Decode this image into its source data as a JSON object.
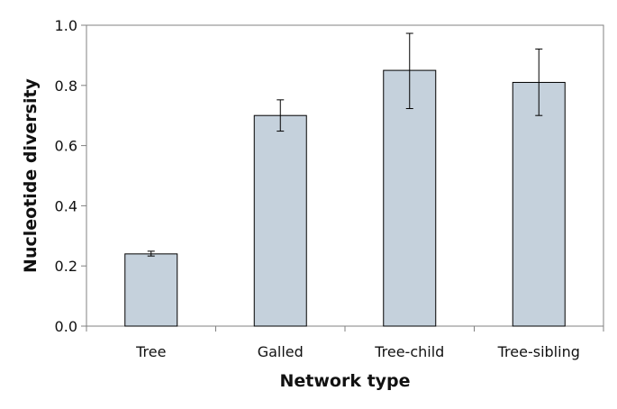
{
  "chart_data": {
    "type": "bar",
    "title": "",
    "xlabel": "Network type",
    "ylabel": "Nucleotide diversity",
    "categories": [
      "Tree",
      "Galled",
      "Tree-child",
      "Tree-sibling"
    ],
    "values": [
      0.24,
      0.7,
      0.85,
      0.81
    ],
    "error_low": [
      0.233,
      0.648,
      0.723,
      0.7
    ],
    "error_high": [
      0.249,
      0.752,
      0.973,
      0.921
    ],
    "ylim": [
      0,
      1.0
    ],
    "yticks": [
      "0.0",
      "0.2",
      "0.4",
      "0.6",
      "0.8",
      "1.0"
    ],
    "grid": false,
    "legend": "none",
    "bar_color": "#c5d1dc",
    "bar_edge_color": "#000000"
  }
}
